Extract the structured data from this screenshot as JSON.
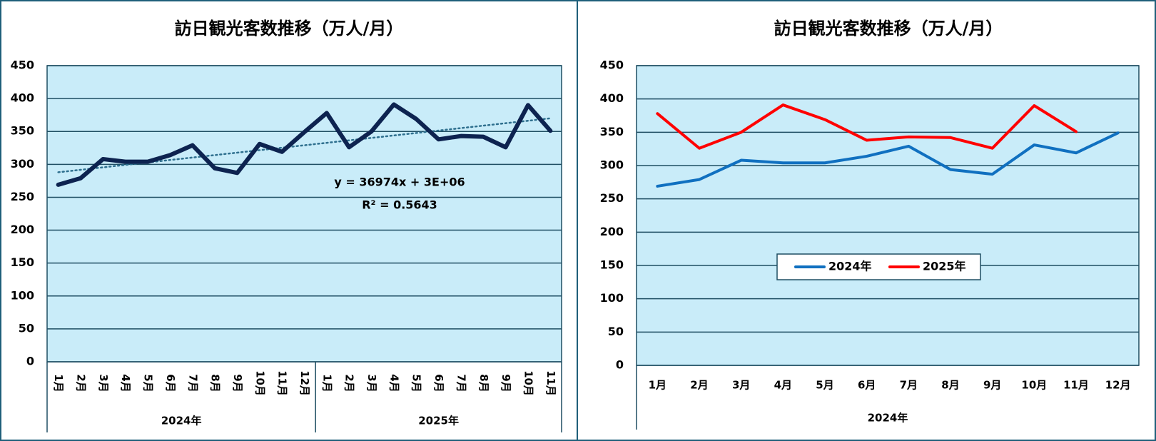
{
  "chart_data": [
    {
      "type": "line",
      "title": "訪日観光客数推移（万人/月）",
      "category_groups": [
        {
          "name": "2024年",
          "categories": [
            "1月",
            "2月",
            "3月",
            "4月",
            "5月",
            "6月",
            "7月",
            "8月",
            "9月",
            "10月",
            "11月",
            "12月"
          ]
        },
        {
          "name": "2025年",
          "categories": [
            "1月",
            "2月",
            "3月",
            "4月",
            "5月",
            "6月",
            "7月",
            "8月",
            "9月",
            "10月",
            "11月"
          ]
        }
      ],
      "series": [
        {
          "color": "#0d2350",
          "values": [
            269,
            279,
            308,
            304,
            304,
            314,
            329,
            294,
            287,
            331,
            319,
            349,
            378,
            326,
            350,
            391,
            369,
            338,
            343,
            342,
            326,
            390,
            351
          ]
        }
      ],
      "trendline": {
        "color": "#2e6f8e",
        "values": [
          288,
          370
        ],
        "equation": "y = 36974x + 3E+06",
        "r_squared": "R² = 0.5643"
      },
      "ylim": [
        0,
        450
      ],
      "yticks": [
        0,
        50,
        100,
        150,
        200,
        250,
        300,
        350,
        400,
        450
      ],
      "grid": true
    },
    {
      "type": "line",
      "title": "訪日観光客数推移（万人/月）",
      "categories": [
        "1月",
        "2月",
        "3月",
        "4月",
        "5月",
        "6月",
        "7月",
        "8月",
        "9月",
        "10月",
        "11月",
        "12月"
      ],
      "x_label": "2024年",
      "series": [
        {
          "name": "2024年",
          "color": "#1070c0",
          "values": [
            269,
            279,
            308,
            304,
            304,
            314,
            329,
            294,
            287,
            331,
            319,
            349
          ]
        },
        {
          "name": "2025年",
          "color": "#ff0000",
          "values": [
            378,
            326,
            350,
            391,
            369,
            338,
            343,
            342,
            326,
            390,
            351,
            null
          ]
        }
      ],
      "ylim": [
        0,
        450
      ],
      "yticks": [
        0,
        50,
        100,
        150,
        200,
        250,
        300,
        350,
        400,
        450
      ],
      "grid": true,
      "legend": "center"
    }
  ]
}
